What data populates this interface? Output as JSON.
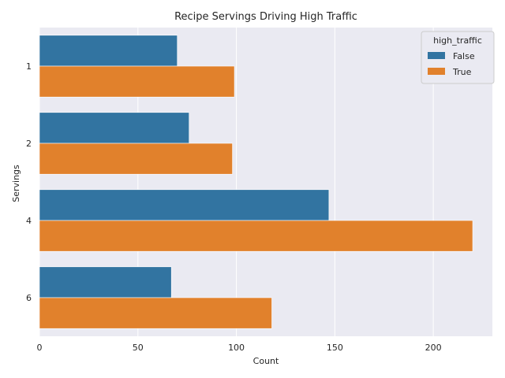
{
  "chart_data": {
    "type": "bar",
    "orientation": "horizontal",
    "title": "Recipe Servings Driving High Traffic",
    "xlabel": "Count",
    "ylabel": "Servings",
    "categories": [
      "1",
      "2",
      "4",
      "6"
    ],
    "xlim": [
      0,
      230
    ],
    "xticks": [
      0,
      50,
      100,
      150,
      200
    ],
    "grid": true,
    "legend_title": "high_traffic",
    "legend_position": "top-right",
    "series": [
      {
        "name": "False",
        "color": "#3274a1",
        "values": [
          70,
          76,
          147,
          67
        ]
      },
      {
        "name": "True",
        "color": "#e1812c",
        "values": [
          99,
          98,
          220,
          118
        ]
      }
    ]
  },
  "style": {
    "plot_background": "#eaeaf2",
    "grid_color": "#ffffff",
    "text_color": "#262626",
    "legend_background": "#eaeaf2",
    "legend_border": "#cccccc"
  }
}
